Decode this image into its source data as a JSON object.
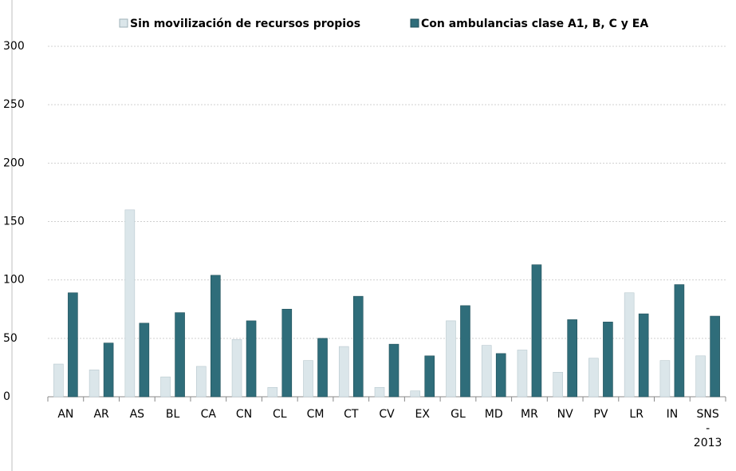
{
  "chart_data": {
    "type": "bar",
    "categories": [
      "AN",
      "AR",
      "AS",
      "BL",
      "CA",
      "CN",
      "CL",
      "CM",
      "CT",
      "CV",
      "EX",
      "GL",
      "MD",
      "MR",
      "NV",
      "PV",
      "LR",
      "IN",
      "SNS - 2013"
    ],
    "series": [
      {
        "name": "Sin movilización de recursos propios",
        "color": "#dbe6ea",
        "values": [
          28,
          23,
          160,
          17,
          26,
          49,
          8,
          31,
          43,
          8,
          5,
          65,
          44,
          40,
          21,
          33,
          89,
          31,
          35
        ]
      },
      {
        "name": "Con ambulancias clase A1, B, C y EA",
        "color": "#2f6d7a",
        "values": [
          89,
          46,
          63,
          72,
          104,
          65,
          75,
          50,
          86,
          45,
          35,
          78,
          37,
          113,
          66,
          64,
          71,
          96,
          69
        ]
      }
    ],
    "ylim": [
      0,
      300
    ],
    "yticks": [
      0,
      50,
      100,
      150,
      200,
      250,
      300
    ],
    "grid": true,
    "legend": "top"
  }
}
